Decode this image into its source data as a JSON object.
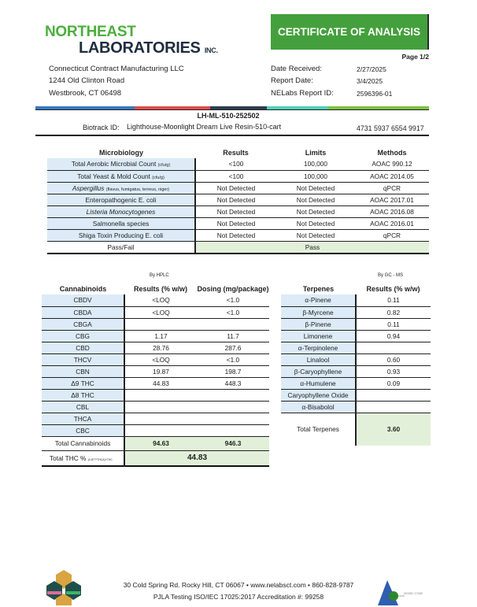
{
  "header": {
    "logo_line1": "NORTHEAST",
    "logo_line2": "LABORATORIES",
    "logo_inc": "INC.",
    "title": "CERTIFICATE OF ANALYSIS",
    "page": "Page 1/2"
  },
  "client": {
    "name": "Connecticut Contract Manufacturing LLC",
    "street": "1244 Old Clinton Road",
    "city": "Westbrook, CT 06498"
  },
  "report": [
    {
      "label": "Date Received:",
      "value": "2/27/2025"
    },
    {
      "label": "Report Date:",
      "value": "3/4/2025"
    },
    {
      "label": "NELabs Report ID:",
      "value": "2596396-01"
    }
  ],
  "colors": {
    "brand_green": "#44a03c",
    "bar": [
      "#3a78c2",
      "#e04b4b",
      "#2e3e52",
      "#4fd1b8",
      "#7cc242"
    ]
  },
  "sample": {
    "id": "LH-ML-510-252502",
    "biotrack_label": "Biotrack ID:",
    "biotrack_name": "Lighthouse-Moonlight Dream Live Resin-510-cart",
    "biotrack_number": "4731 5937 6554 9917"
  },
  "micro": {
    "headers": [
      "Microbiology",
      "Results",
      "Limits",
      "Methods"
    ],
    "rows": [
      {
        "name": "Total Aerobic Microbial Count",
        "unit": "(cfu/g)",
        "result": "<100",
        "limit": "100,000",
        "method": "AOAC 990.12"
      },
      {
        "name": "Total Yeast & Mold Count",
        "unit": "(cfu/g)",
        "result": "<100",
        "limit": "100,000",
        "method": "AOAC 2014.05"
      },
      {
        "name": "Aspergillus",
        "unit": "(flavus, fumigatus, terreus, niger)",
        "result": "Not Detected",
        "limit": "Not Detected",
        "method": "qPCR"
      },
      {
        "name": "Enteropathogenic E. coli",
        "unit": "",
        "result": "Not Detected",
        "limit": "Not Detected",
        "method": "AOAC 2017.01"
      },
      {
        "name": "Listeria Monocytogenes",
        "unit": "",
        "result": "Not Detected",
        "limit": "Not Detected",
        "method": "AOAC 2016.08"
      },
      {
        "name": "Salmonella species",
        "unit": "",
        "result": "Not Detected",
        "limit": "Not Detected",
        "method": "AOAC 2016.01"
      },
      {
        "name": "Shiga Toxin Producing E. coli",
        "unit": "",
        "result": "Not Detected",
        "limit": "Not Detected",
        "method": "qPCR"
      }
    ],
    "pass_label": "Pass/Fail",
    "pass_value": "Pass"
  },
  "cannabinoids": {
    "method": "By HPLC",
    "headers": [
      "Cannabinoids",
      "Results (% w/w)",
      "Dosing (mg/package)"
    ],
    "rows": [
      [
        "CBDV",
        "<LOQ",
        "<1.0"
      ],
      [
        "CBDA",
        "<LOQ",
        "<1.0"
      ],
      [
        "CBGA",
        "",
        ""
      ],
      [
        "CBG",
        "1.17",
        "11.7"
      ],
      [
        "CBD",
        "28.76",
        "287.6"
      ],
      [
        "THCV",
        "<LOQ",
        "<1.0"
      ],
      [
        "CBN",
        "19.87",
        "198.7"
      ],
      [
        "Δ9 THC",
        "44.83",
        "448.3"
      ],
      [
        "Δ8 THC",
        "",
        ""
      ],
      [
        "CBL",
        "",
        ""
      ],
      [
        "THCA",
        "",
        ""
      ],
      [
        "CBC",
        "",
        ""
      ]
    ],
    "total_label": "Total Cannabinoids",
    "total_result": "94.63",
    "total_dosing": "946.3",
    "thc_label": "Total THC %",
    "thc_formula": "(0.877*THCA)+THC",
    "thc_value": "44.83"
  },
  "terpenes": {
    "method": "By GC - MS",
    "headers": [
      "Terpenes",
      "Results (% w/w)"
    ],
    "rows": [
      [
        "α-Pinene",
        "0.11"
      ],
      [
        "β-Myrcene",
        "0.82"
      ],
      [
        "β-Pinene",
        "0.11"
      ],
      [
        "Limonene",
        "0.94"
      ],
      [
        "α-Terpinolene",
        ""
      ],
      [
        "Linalool",
        "0.60"
      ],
      [
        "β-Caryophyllene",
        "0.93"
      ],
      [
        "α-Humulene",
        "0.09"
      ],
      [
        "Caryophyllene Oxide",
        ""
      ],
      [
        "α-Bisabolol",
        ""
      ]
    ],
    "total_label": "Total Terpenes",
    "total_value": "3.60"
  },
  "footer": {
    "line1": "30 Cold Spring Rd. Rocky Hill, CT 06067  •  www.nelabsct.com  •  860-828-9787",
    "line2": "PJLA Testing ISO/IEC 17025:2017 Accreditation #: 99258"
  }
}
